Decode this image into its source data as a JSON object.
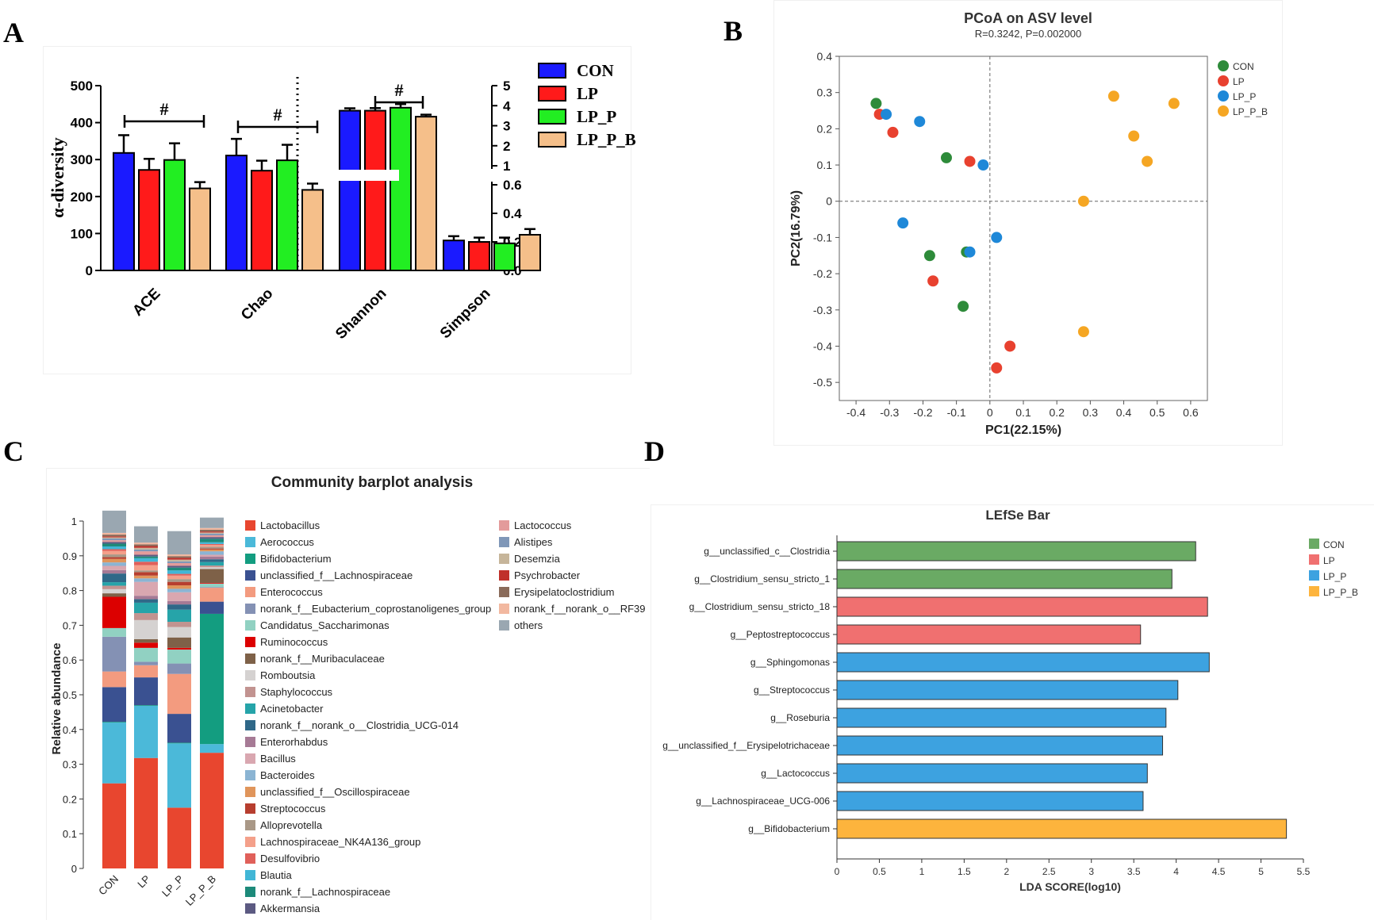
{
  "panels": {
    "a_letter": "A",
    "b_letter": "B",
    "c_letter": "C",
    "d_letter": "D"
  },
  "colors": {
    "CON": "#1a1aff",
    "LP": "#ff1a1a",
    "LP_P": "#22ee22",
    "LP_P_B": "#f5bf8a",
    "CON_pcoa": "#2e8b3a",
    "LP_pcoa": "#e8412f",
    "LP_P_pcoa": "#1e88d8",
    "LP_P_B_pcoa": "#f5a623",
    "lefse_CON": "#6aaa64",
    "lefse_LP": "#f07070",
    "lefse_LP_P": "#3da2e0",
    "lefse_LP_P_B": "#fdb43d"
  },
  "chart_data": [
    {
      "id": "A",
      "type": "bar",
      "ylabel": "α-diversity",
      "left_axis": {
        "ylim": [
          0,
          500
        ],
        "ticks": [
          "0",
          "100",
          "200",
          "300",
          "400",
          "500"
        ]
      },
      "right_axis_lower": {
        "ylim": [
          0,
          0.6
        ],
        "ticks": [
          "0.0",
          "0.2",
          "0.4",
          "0.6"
        ]
      },
      "right_axis_upper": {
        "ylim": [
          1,
          5
        ],
        "ticks": [
          "1",
          "2",
          "3",
          "4",
          "5"
        ]
      },
      "categories": [
        "ACE",
        "Chao",
        "Shannon",
        "Simpson"
      ],
      "series": [
        {
          "name": "CON",
          "values": [
            318,
            311,
            3.75,
            0.21
          ],
          "errors": [
            48,
            45,
            0.12,
            0.03
          ]
        },
        {
          "name": "LP",
          "values": [
            272,
            270,
            3.75,
            0.2
          ],
          "errors": [
            30,
            27,
            0.13,
            0.03
          ]
        },
        {
          "name": "LP_P",
          "values": [
            299,
            298,
            3.9,
            0.19
          ],
          "errors": [
            45,
            42,
            0.18,
            0.04
          ]
        },
        {
          "name": "LP_P_B",
          "values": [
            222,
            218,
            3.45,
            0.25
          ],
          "errors": [
            17,
            17,
            0.1,
            0.04
          ]
        }
      ],
      "significance": [
        "#",
        "#",
        "#"
      ]
    },
    {
      "id": "B",
      "type": "scatter",
      "title": "PCoA on ASV level",
      "subtitle": "R=0.3242, P=0.002000",
      "xlabel": "PC1(22.15%)",
      "ylabel": "PC2(16.79%)",
      "xlim": [
        -0.45,
        0.65
      ],
      "ylim": [
        -0.55,
        0.4
      ],
      "xticks": [
        "-0.4",
        "-0.3",
        "-0.2",
        "-0.1",
        "0",
        "0.1",
        "0.2",
        "0.3",
        "0.4",
        "0.5",
        "0.6"
      ],
      "yticks": [
        "0.4",
        "0.3",
        "0.2",
        "0.1",
        "0",
        "-0.1",
        "-0.2",
        "-0.3",
        "-0.4",
        "-0.5"
      ],
      "legend_position": "top-right",
      "series": [
        {
          "name": "CON",
          "points": [
            [
              -0.34,
              0.27
            ],
            [
              -0.13,
              0.12
            ],
            [
              -0.18,
              -0.15
            ],
            [
              -0.07,
              -0.14
            ],
            [
              -0.08,
              -0.29
            ]
          ]
        },
        {
          "name": "LP",
          "points": [
            [
              -0.33,
              0.24
            ],
            [
              -0.29,
              0.19
            ],
            [
              -0.06,
              0.11
            ],
            [
              -0.17,
              -0.22
            ],
            [
              0.06,
              -0.4
            ],
            [
              0.02,
              -0.46
            ]
          ]
        },
        {
          "name": "LP_P",
          "points": [
            [
              -0.31,
              0.24
            ],
            [
              -0.21,
              0.22
            ],
            [
              -0.02,
              0.1
            ],
            [
              -0.26,
              -0.06
            ],
            [
              0.02,
              -0.1
            ],
            [
              -0.06,
              -0.14
            ]
          ]
        },
        {
          "name": "LP_P_B",
          "points": [
            [
              0.37,
              0.29
            ],
            [
              0.55,
              0.27
            ],
            [
              0.43,
              0.18
            ],
            [
              0.47,
              0.11
            ],
            [
              0.28,
              0.0
            ],
            [
              0.28,
              -0.36
            ]
          ]
        }
      ]
    },
    {
      "id": "C",
      "type": "bar",
      "title": "Community barplot analysis",
      "ylabel": "Relative abundance",
      "ylim": [
        0,
        1
      ],
      "yticks": [
        "0",
        "0.1",
        "0.2",
        "0.3",
        "0.4",
        "0.5",
        "0.6",
        "0.7",
        "0.8",
        "0.9",
        "1"
      ],
      "categories": [
        "CON",
        "LP",
        "LP_P",
        "LP_P_B"
      ],
      "series": [
        {
          "name": "Lactobacillus",
          "color": "#e8462f",
          "values": [
            0.245,
            0.318,
            0.175,
            0.333
          ]
        },
        {
          "name": "Aerococcus",
          "color": "#4bb9d9",
          "values": [
            0.175,
            0.15,
            0.185,
            0.025
          ]
        },
        {
          "name": "Bifidobacterium",
          "color": "#139d80",
          "values": [
            0.002,
            0.002,
            0.002,
            0.375
          ]
        },
        {
          "name": "unclassified_f__Lachnospiraceae",
          "color": "#3a5191",
          "values": [
            0.1,
            0.08,
            0.083,
            0.035
          ]
        },
        {
          "name": "Enterococcus",
          "color": "#f39b7f",
          "values": [
            0.045,
            0.035,
            0.115,
            0.04
          ]
        },
        {
          "name": "norank_f__Eubacterium_coprostanoligenes_group",
          "color": "#8491b4",
          "values": [
            0.1,
            0.01,
            0.03,
            0.002
          ]
        },
        {
          "name": "Candidatus_Saccharimonas",
          "color": "#91d1c2",
          "values": [
            0.025,
            0.04,
            0.04,
            0.01
          ]
        },
        {
          "name": "Ruminococcus",
          "color": "#dc0000",
          "values": [
            0.09,
            0.015,
            0.005,
            0.002
          ]
        },
        {
          "name": "norank_f__Muribaculaceae",
          "color": "#7e6148",
          "values": [
            0.01,
            0.01,
            0.03,
            0.04
          ]
        },
        {
          "name": "Romboutsia",
          "color": "#d5d2d1",
          "values": [
            0.012,
            0.055,
            0.03,
            0.005
          ]
        },
        {
          "name": "Staphylococcus",
          "color": "#c29390",
          "values": [
            0.01,
            0.02,
            0.015,
            0.005
          ]
        },
        {
          "name": "Acinetobacter",
          "color": "#26a4a9",
          "values": [
            0.01,
            0.03,
            0.035,
            0.01
          ]
        },
        {
          "name": "norank_f__norank_o__Clostridia_UCG-014",
          "color": "#2f6888",
          "values": [
            0.025,
            0.01,
            0.015,
            0.008
          ]
        },
        {
          "name": "Enterorhabdus",
          "color": "#a67a95",
          "values": [
            0.01,
            0.01,
            0.01,
            0.008
          ]
        },
        {
          "name": "Bacillus",
          "color": "#d9a7b0",
          "values": [
            0.012,
            0.04,
            0.025,
            0.005
          ]
        },
        {
          "name": "Bacteroides",
          "color": "#8bb4d3",
          "values": [
            0.01,
            0.01,
            0.01,
            0.01
          ]
        },
        {
          "name": "unclassified_f__Oscillospiraceae",
          "color": "#e0955b",
          "values": [
            0.01,
            0.008,
            0.01,
            0.005
          ]
        },
        {
          "name": "Streptococcus",
          "color": "#b73e2f",
          "values": [
            0.005,
            0.01,
            0.01,
            0.003
          ]
        },
        {
          "name": "Alloprevotella",
          "color": "#a99887",
          "values": [
            0.008,
            0.005,
            0.008,
            0.005
          ]
        },
        {
          "name": "Lachnospiraceae_NK4A136_group",
          "color": "#f4a08a",
          "values": [
            0.01,
            0.015,
            0.01,
            0.005
          ]
        },
        {
          "name": "Desulfovibrio",
          "color": "#e0605a",
          "values": [
            0.005,
            0.01,
            0.005,
            0.003
          ]
        },
        {
          "name": "Blautia",
          "color": "#41b6d6",
          "values": [
            0.008,
            0.01,
            0.01,
            0.005
          ]
        },
        {
          "name": "norank_f__Lachnospiraceae",
          "color": "#1d8a7a",
          "values": [
            0.008,
            0.005,
            0.008,
            0.01
          ]
        },
        {
          "name": "Akkermansia",
          "color": "#5c5a82",
          "values": [
            0.005,
            0.005,
            0.005,
            0.005
          ]
        },
        {
          "name": "Lactococcus",
          "color": "#e39b9b",
          "values": [
            0.005,
            0.01,
            0.008,
            0.005
          ]
        },
        {
          "name": "Alistipes",
          "color": "#7f97b8",
          "values": [
            0.005,
            0.005,
            0.005,
            0.005
          ]
        },
        {
          "name": "Desemzia",
          "color": "#c6b59a",
          "values": [
            0.003,
            0.005,
            0.005,
            0.003
          ]
        },
        {
          "name": "Psychrobacter",
          "color": "#c0302a",
          "values": [
            0.003,
            0.005,
            0.005,
            0.003
          ]
        },
        {
          "name": "Erysipelatoclostridium",
          "color": "#8a6b5a",
          "values": [
            0.005,
            0.005,
            0.005,
            0.005
          ]
        },
        {
          "name": "norank_f__norank_o__RF39",
          "color": "#f2b8a0",
          "values": [
            0.005,
            0.005,
            0.005,
            0.005
          ]
        },
        {
          "name": "others",
          "color": "#9aa7b1",
          "values": [
            0.064,
            0.047,
            0.067,
            0.03
          ]
        }
      ]
    },
    {
      "id": "D",
      "type": "bar",
      "title": "LEfSe Bar",
      "xlabel": "LDA SCORE(log10)",
      "xlim": [
        0,
        5.5
      ],
      "xticks": [
        "0",
        "0.5",
        "1",
        "1.5",
        "2",
        "2.5",
        "3",
        "3.5",
        "4",
        "4.5",
        "5",
        "5.5"
      ],
      "categories": [
        "g__unclassified_c__Clostridia",
        "g__Clostridium_sensu_stricto_1",
        "g__Clostridium_sensu_stricto_18",
        "g__Peptostreptococcus",
        "g__Sphingomonas",
        "g__Streptococcus",
        "g__Roseburia",
        "g__unclassified_f__Erysipelotrichaceae",
        "g__Lactococcus",
        "g__Lachnospiraceae_UCG-006",
        "g__Bifidobacterium"
      ],
      "values": [
        4.23,
        3.95,
        4.37,
        3.58,
        4.39,
        4.02,
        3.88,
        3.84,
        3.66,
        3.61,
        5.3
      ],
      "groups": [
        "CON",
        "CON",
        "LP",
        "LP",
        "LP_P",
        "LP_P",
        "LP_P",
        "LP_P",
        "LP_P",
        "LP_P",
        "LP_P_B"
      ],
      "legend": [
        "CON",
        "LP",
        "LP_P",
        "LP_P_B"
      ],
      "legend_position": "top-right"
    }
  ]
}
